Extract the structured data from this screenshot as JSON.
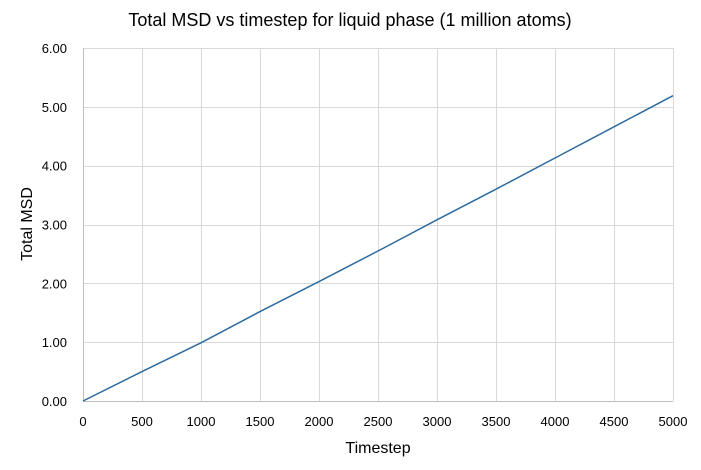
{
  "chart_data": {
    "type": "line",
    "title": "Total MSD vs timestep for liquid phase (1 million atoms)",
    "xlabel": "Timestep",
    "ylabel": "Total MSD",
    "xlim": [
      0,
      5000
    ],
    "ylim": [
      0,
      6
    ],
    "x_ticks": [
      "0",
      "500",
      "1000",
      "1500",
      "2000",
      "2500",
      "3000",
      "3500",
      "4000",
      "4500",
      "5000"
    ],
    "y_ticks": [
      "0.00",
      "1.00",
      "2.00",
      "3.00",
      "4.00",
      "5.00",
      "6.00"
    ],
    "grid": true,
    "legend": "none",
    "series": [
      {
        "name": "Total MSD",
        "color": "#2e6b9e",
        "x": [
          0,
          500,
          1000,
          1500,
          2000,
          2500,
          3000,
          3500,
          4000,
          4500,
          5000
        ],
        "y": [
          0.0,
          0.5,
          0.99,
          1.52,
          2.03,
          2.55,
          3.08,
          3.6,
          4.13,
          4.66,
          5.19
        ]
      }
    ]
  }
}
